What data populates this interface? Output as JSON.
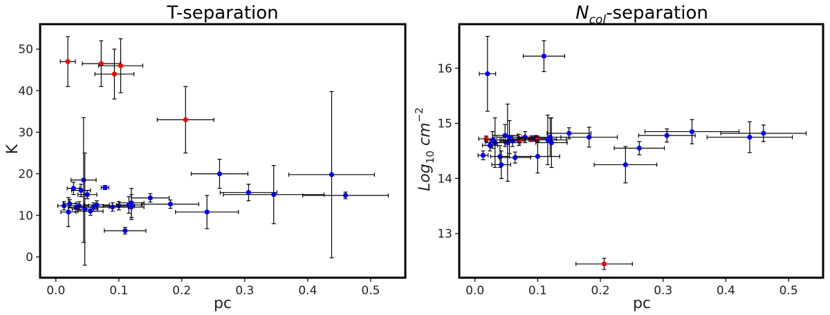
{
  "chart_data": [
    {
      "type": "scatter",
      "title": "T-separation",
      "xlabel": "pc",
      "ylabel": "K",
      "xlim": [
        -0.025,
        0.555
      ],
      "ylim": [
        -5,
        56
      ],
      "xticks": [
        "0.0",
        "0.1",
        "0.2",
        "0.3",
        "0.4",
        "0.5"
      ],
      "xtick_values": [
        0.0,
        0.1,
        0.2,
        0.3,
        0.4,
        0.5
      ],
      "yticks": [
        "0",
        "10",
        "20",
        "30",
        "40",
        "50"
      ],
      "ytick_values": [
        0,
        10,
        20,
        30,
        40,
        50
      ],
      "grid": false,
      "colors": {
        "blue": "#0000ff",
        "red": "#ff0000"
      },
      "points": [
        {
          "x": 0.019,
          "y": 47.0,
          "xerr": 0.012,
          "yerr": 6.0,
          "color": "red"
        },
        {
          "x": 0.072,
          "y": 46.5,
          "xerr": 0.03,
          "yerr": 5.5,
          "color": "red"
        },
        {
          "x": 0.103,
          "y": 46.0,
          "xerr": 0.035,
          "yerr": 6.5,
          "color": "red"
        },
        {
          "x": 0.093,
          "y": 44.0,
          "xerr": 0.031,
          "yerr": 6.0,
          "color": "red"
        },
        {
          "x": 0.206,
          "y": 33.0,
          "xerr": 0.045,
          "yerr": 8.0,
          "color": "red"
        },
        {
          "x": 0.013,
          "y": 12.3,
          "xerr": 0.01,
          "yerr": 1.0,
          "color": "blue"
        },
        {
          "x": 0.02,
          "y": 10.8,
          "xerr": 0.012,
          "yerr": 3.5,
          "color": "blue"
        },
        {
          "x": 0.022,
          "y": 12.8,
          "xerr": 0.01,
          "yerr": 1.0,
          "color": "blue"
        },
        {
          "x": 0.028,
          "y": 16.5,
          "xerr": 0.01,
          "yerr": 1.5,
          "color": "blue"
        },
        {
          "x": 0.032,
          "y": 11.9,
          "xerr": 0.012,
          "yerr": 1.0,
          "color": "blue"
        },
        {
          "x": 0.037,
          "y": 12.3,
          "xerr": 0.015,
          "yerr": 1.0,
          "color": "blue"
        },
        {
          "x": 0.04,
          "y": 16.0,
          "xerr": 0.015,
          "yerr": 1.5,
          "color": "blue"
        },
        {
          "x": 0.044,
          "y": 18.5,
          "xerr": 0.02,
          "yerr": 15.0,
          "color": "blue"
        },
        {
          "x": 0.046,
          "y": 11.5,
          "xerr": 0.02,
          "yerr": 13.5,
          "color": "blue"
        },
        {
          "x": 0.05,
          "y": 15.0,
          "xerr": 0.015,
          "yerr": 1.0,
          "color": "blue"
        },
        {
          "x": 0.055,
          "y": 11.0,
          "xerr": 0.02,
          "yerr": 1.0,
          "color": "blue"
        },
        {
          "x": 0.06,
          "y": 12.0,
          "xerr": 0.025,
          "yerr": 1.0,
          "color": "blue"
        },
        {
          "x": 0.065,
          "y": 12.5,
          "xerr": 0.02,
          "yerr": 1.0,
          "color": "blue"
        },
        {
          "x": 0.078,
          "y": 16.7,
          "xerr": 0.006,
          "yerr": 0.5,
          "color": "blue"
        },
        {
          "x": 0.09,
          "y": 12.0,
          "xerr": 0.025,
          "yerr": 1.0,
          "color": "blue"
        },
        {
          "x": 0.1,
          "y": 12.3,
          "xerr": 0.025,
          "yerr": 1.0,
          "color": "blue"
        },
        {
          "x": 0.11,
          "y": 6.3,
          "xerr": 0.033,
          "yerr": 0.8,
          "color": "blue"
        },
        {
          "x": 0.116,
          "y": 12.5,
          "xerr": 0.02,
          "yerr": 2.0,
          "color": "blue"
        },
        {
          "x": 0.12,
          "y": 13.0,
          "xerr": 0.02,
          "yerr": 3.5,
          "color": "blue"
        },
        {
          "x": 0.12,
          "y": 12.0,
          "xerr": 0.02,
          "yerr": 3.0,
          "color": "blue"
        },
        {
          "x": 0.15,
          "y": 14.2,
          "xerr": 0.03,
          "yerr": 1.0,
          "color": "blue"
        },
        {
          "x": 0.182,
          "y": 12.7,
          "xerr": 0.045,
          "yerr": 1.0,
          "color": "blue"
        },
        {
          "x": 0.24,
          "y": 10.8,
          "xerr": 0.05,
          "yerr": 4.0,
          "color": "blue"
        },
        {
          "x": 0.26,
          "y": 20.0,
          "xerr": 0.045,
          "yerr": 3.5,
          "color": "blue"
        },
        {
          "x": 0.306,
          "y": 15.5,
          "xerr": 0.045,
          "yerr": 2.0,
          "color": "blue"
        },
        {
          "x": 0.346,
          "y": 15.0,
          "xerr": 0.08,
          "yerr": 7.0,
          "color": "blue"
        },
        {
          "x": 0.438,
          "y": 19.8,
          "xerr": 0.068,
          "yerr": 20.0,
          "color": "blue"
        },
        {
          "x": 0.46,
          "y": 14.8,
          "xerr": 0.068,
          "yerr": 0.8,
          "color": "blue"
        }
      ]
    },
    {
      "type": "scatter",
      "title_main": "N",
      "title_sub": "col",
      "title_rest": "-separation",
      "xlabel": "pc",
      "ylabel_main": "Log",
      "ylabel_sub": "10",
      "ylabel_rest": " cm",
      "ylabel_sup": "−2",
      "xlim": [
        -0.025,
        0.555
      ],
      "ylim": [
        12.2,
        16.8
      ],
      "xticks": [
        "0.0",
        "0.1",
        "0.2",
        "0.3",
        "0.4",
        "0.5"
      ],
      "xtick_values": [
        0.0,
        0.1,
        0.2,
        0.3,
        0.4,
        0.5
      ],
      "yticks": [
        "13",
        "14",
        "15",
        "16"
      ],
      "ytick_values": [
        13,
        14,
        15,
        16
      ],
      "grid": false,
      "colors": {
        "blue": "#0000ff",
        "red": "#ff0000"
      },
      "points": [
        {
          "x": 0.013,
          "y": 14.42,
          "xerr": 0.008,
          "yerr": 0.08,
          "color": "blue"
        },
        {
          "x": 0.018,
          "y": 14.72,
          "xerr": 0.012,
          "yerr": 0.05,
          "color": "red"
        },
        {
          "x": 0.02,
          "y": 15.9,
          "xerr": 0.013,
          "yerr": 0.68,
          "color": "blue"
        },
        {
          "x": 0.024,
          "y": 14.6,
          "xerr": 0.012,
          "yerr": 0.1,
          "color": "blue"
        },
        {
          "x": 0.028,
          "y": 14.7,
          "xerr": 0.012,
          "yerr": 0.15,
          "color": "blue"
        },
        {
          "x": 0.032,
          "y": 14.65,
          "xerr": 0.015,
          "yerr": 0.45,
          "color": "blue"
        },
        {
          "x": 0.04,
          "y": 14.4,
          "xerr": 0.015,
          "yerr": 0.2,
          "color": "blue"
        },
        {
          "x": 0.042,
          "y": 14.25,
          "xerr": 0.015,
          "yerr": 0.25,
          "color": "blue"
        },
        {
          "x": 0.048,
          "y": 14.78,
          "xerr": 0.02,
          "yerr": 0.2,
          "color": "blue"
        },
        {
          "x": 0.052,
          "y": 14.65,
          "xerr": 0.02,
          "yerr": 0.7,
          "color": "blue"
        },
        {
          "x": 0.055,
          "y": 14.75,
          "xerr": 0.02,
          "yerr": 0.3,
          "color": "blue"
        },
        {
          "x": 0.06,
          "y": 14.68,
          "xerr": 0.02,
          "yerr": 0.1,
          "color": "blue"
        },
        {
          "x": 0.064,
          "y": 14.38,
          "xerr": 0.025,
          "yerr": 0.1,
          "color": "blue"
        },
        {
          "x": 0.07,
          "y": 14.7,
          "xerr": 0.025,
          "yerr": 0.1,
          "color": "blue"
        },
        {
          "x": 0.072,
          "y": 14.7,
          "xerr": 0.03,
          "yerr": 0.05,
          "color": "red"
        },
        {
          "x": 0.08,
          "y": 14.75,
          "xerr": 0.02,
          "yerr": 0.1,
          "color": "blue"
        },
        {
          "x": 0.09,
          "y": 14.72,
          "xerr": 0.03,
          "yerr": 0.05,
          "color": "red"
        },
        {
          "x": 0.096,
          "y": 14.73,
          "xerr": 0.025,
          "yerr": 0.05,
          "color": "blue"
        },
        {
          "x": 0.1,
          "y": 14.72,
          "xerr": 0.03,
          "yerr": 0.05,
          "color": "red"
        },
        {
          "x": 0.1,
          "y": 14.4,
          "xerr": 0.035,
          "yerr": 0.3,
          "color": "blue"
        },
        {
          "x": 0.11,
          "y": 16.22,
          "xerr": 0.033,
          "yerr": 0.28,
          "color": "blue"
        },
        {
          "x": 0.116,
          "y": 14.7,
          "xerr": 0.03,
          "yerr": 0.45,
          "color": "blue"
        },
        {
          "x": 0.12,
          "y": 14.75,
          "xerr": 0.03,
          "yerr": 0.35,
          "color": "blue"
        },
        {
          "x": 0.122,
          "y": 14.65,
          "xerr": 0.025,
          "yerr": 0.45,
          "color": "blue"
        },
        {
          "x": 0.15,
          "y": 14.82,
          "xerr": 0.035,
          "yerr": 0.1,
          "color": "blue"
        },
        {
          "x": 0.182,
          "y": 14.75,
          "xerr": 0.045,
          "yerr": 0.18,
          "color": "blue"
        },
        {
          "x": 0.206,
          "y": 12.45,
          "xerr": 0.045,
          "yerr": 0.1,
          "color": "red"
        },
        {
          "x": 0.24,
          "y": 14.25,
          "xerr": 0.05,
          "yerr": 0.33,
          "color": "blue"
        },
        {
          "x": 0.262,
          "y": 14.55,
          "xerr": 0.04,
          "yerr": 0.12,
          "color": "blue"
        },
        {
          "x": 0.306,
          "y": 14.78,
          "xerr": 0.045,
          "yerr": 0.12,
          "color": "blue"
        },
        {
          "x": 0.346,
          "y": 14.85,
          "xerr": 0.075,
          "yerr": 0.22,
          "color": "blue"
        },
        {
          "x": 0.438,
          "y": 14.75,
          "xerr": 0.068,
          "yerr": 0.28,
          "color": "blue"
        },
        {
          "x": 0.46,
          "y": 14.82,
          "xerr": 0.068,
          "yerr": 0.15,
          "color": "blue"
        }
      ]
    }
  ]
}
